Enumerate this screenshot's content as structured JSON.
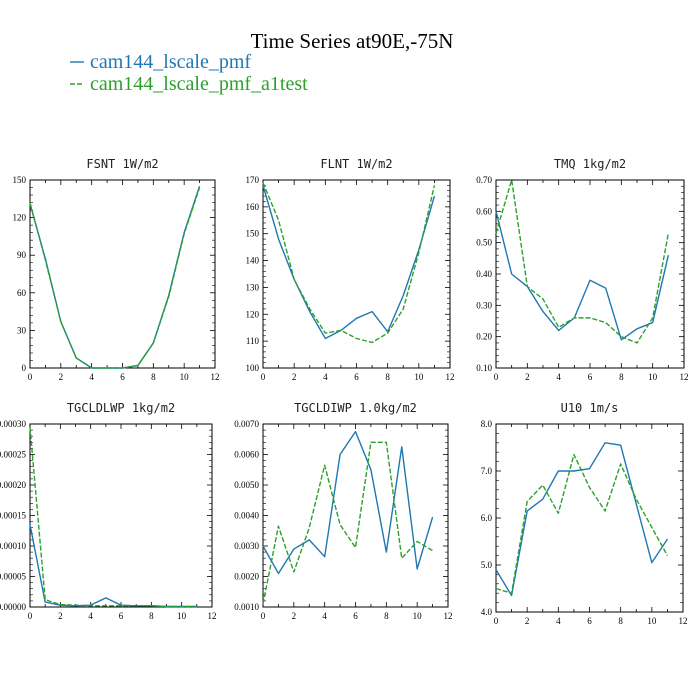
{
  "figure": {
    "title": "Time Series at90E,-75N",
    "legend": [
      {
        "label": "cam144_lscale_pmf",
        "color": "#1f77b4",
        "dash": "solid"
      },
      {
        "label": "cam144_lscale_pmf_a1test",
        "color": "#2ca02c",
        "dash": "dashed"
      }
    ]
  },
  "chart_data": [
    {
      "type": "line",
      "title": "FSNT  1W/m2",
      "x": [
        0,
        1,
        2,
        3,
        4,
        5,
        6,
        7,
        8,
        9,
        10,
        11
      ],
      "xlim": [
        0,
        12
      ],
      "xticks": [
        0,
        2,
        4,
        6,
        8,
        10,
        12
      ],
      "xtick_labels": [
        "0",
        "2",
        "4",
        "6",
        "8",
        "10",
        "12"
      ],
      "ylim": [
        0,
        150
      ],
      "yticks": [
        0,
        30,
        60,
        90,
        120,
        150
      ],
      "ytick_labels": [
        "0",
        "30",
        "60",
        "90",
        "120",
        "150"
      ],
      "series": [
        {
          "name": "cam144_lscale_pmf",
          "values": [
            131,
            87,
            37,
            8,
            0,
            0,
            0,
            2,
            20,
            58,
            108,
            145
          ]
        },
        {
          "name": "cam144_lscale_pmf_a1test",
          "values": [
            132,
            86,
            37,
            8,
            0,
            0,
            0,
            2,
            20,
            57,
            107,
            144
          ]
        }
      ]
    },
    {
      "type": "line",
      "title": "FLNT  1W/m2",
      "x": [
        0,
        1,
        2,
        3,
        4,
        5,
        6,
        7,
        8,
        9,
        10,
        11
      ],
      "xlim": [
        0,
        12
      ],
      "xticks": [
        0,
        2,
        4,
        6,
        8,
        10,
        12
      ],
      "xtick_labels": [
        "0",
        "2",
        "4",
        "6",
        "8",
        "10",
        "12"
      ],
      "ylim": [
        100,
        170
      ],
      "yticks": [
        100,
        110,
        120,
        130,
        140,
        150,
        160,
        170
      ],
      "ytick_labels": [
        "100",
        "110",
        "120",
        "130",
        "140",
        "150",
        "160",
        "170"
      ],
      "series": [
        {
          "name": "cam144_lscale_pmf",
          "values": [
            168,
            148,
            133,
            121,
            111,
            114,
            118.5,
            121,
            113.5,
            127,
            144,
            164
          ]
        },
        {
          "name": "cam144_lscale_pmf_a1test",
          "values": [
            169,
            155,
            133,
            122,
            113,
            114,
            111,
            109.5,
            113,
            122,
            143,
            168
          ]
        }
      ]
    },
    {
      "type": "line",
      "title": "TMQ  1kg/m2",
      "x": [
        0,
        1,
        2,
        3,
        4,
        5,
        6,
        7,
        8,
        9,
        10,
        11
      ],
      "xlim": [
        0,
        12
      ],
      "xticks": [
        0,
        2,
        4,
        6,
        8,
        10,
        12
      ],
      "xtick_labels": [
        "0",
        "2",
        "4",
        "6",
        "8",
        "10",
        "12"
      ],
      "ylim": [
        0.1,
        0.7
      ],
      "yticks": [
        0.1,
        0.2,
        0.3,
        0.4,
        0.5,
        0.6,
        0.7
      ],
      "ytick_labels": [
        "0.10",
        "0.20",
        "0.30",
        "0.40",
        "0.50",
        "0.60",
        "0.70"
      ],
      "series": [
        {
          "name": "cam144_lscale_pmf",
          "values": [
            0.6,
            0.4,
            0.36,
            0.28,
            0.22,
            0.26,
            0.38,
            0.355,
            0.19,
            0.225,
            0.245,
            0.46
          ]
        },
        {
          "name": "cam144_lscale_pmf_a1test",
          "values": [
            0.53,
            0.7,
            0.36,
            0.32,
            0.23,
            0.26,
            0.26,
            0.245,
            0.2,
            0.18,
            0.26,
            0.53
          ]
        }
      ]
    },
    {
      "type": "line",
      "title": "TGCLDLWP  1kg/m2",
      "x": [
        0,
        1,
        2,
        3,
        4,
        5,
        6,
        7,
        8,
        9,
        10,
        11
      ],
      "xlim": [
        0,
        12
      ],
      "xticks": [
        0,
        2,
        4,
        6,
        8,
        10,
        12
      ],
      "xtick_labels": [
        "0",
        "2",
        "4",
        "6",
        "8",
        "10",
        "12"
      ],
      "ylim": [
        0,
        0.0003
      ],
      "yticks": [
        0,
        5e-05,
        0.0001,
        0.00015,
        0.0002,
        0.00025,
        0.0003
      ],
      "ytick_labels": [
        "0.00000",
        "0.00005",
        "0.00010",
        "0.00015",
        "0.00020",
        "0.00025",
        "0.00030"
      ],
      "series": [
        {
          "name": "cam144_lscale_pmf",
          "values": [
            0.000135,
            8e-06,
            3e-06,
            2e-06,
            3e-06,
            1.5e-05,
            3e-06,
            2e-06,
            2e-06,
            1e-06,
            1e-06,
            1e-06
          ]
        },
        {
          "name": "cam144_lscale_pmf_a1test",
          "values": [
            0.000295,
            1.2e-05,
            4e-06,
            3e-06,
            2e-06,
            2e-06,
            2e-06,
            2e-06,
            2e-06,
            1e-06,
            1e-06,
            1e-06
          ]
        }
      ]
    },
    {
      "type": "line",
      "title": "TGCLDIWP  1.0kg/m2",
      "x": [
        0,
        1,
        2,
        3,
        4,
        5,
        6,
        7,
        8,
        9,
        10,
        11
      ],
      "xlim": [
        0,
        12
      ],
      "xticks": [
        0,
        2,
        4,
        6,
        8,
        10,
        12
      ],
      "xtick_labels": [
        "0",
        "2",
        "4",
        "6",
        "8",
        "10",
        "12"
      ],
      "ylim": [
        0.001,
        0.007
      ],
      "yticks": [
        0.001,
        0.002,
        0.003,
        0.004,
        0.005,
        0.006,
        0.007
      ],
      "ytick_labels": [
        "0.0010",
        "0.0020",
        "0.0030",
        "0.0040",
        "0.0050",
        "0.0060",
        "0.0070"
      ],
      "series": [
        {
          "name": "cam144_lscale_pmf",
          "values": [
            0.003,
            0.0021,
            0.0029,
            0.0032,
            0.00265,
            0.006,
            0.00675,
            0.0055,
            0.0028,
            0.00625,
            0.00225,
            0.00395
          ]
        },
        {
          "name": "cam144_lscale_pmf_a1test",
          "values": [
            0.0011,
            0.00365,
            0.00215,
            0.0036,
            0.00565,
            0.0037,
            0.00295,
            0.0064,
            0.0064,
            0.0026,
            0.00315,
            0.00285
          ]
        }
      ]
    },
    {
      "type": "line",
      "title": "U10  1m/s",
      "x": [
        0,
        1,
        2,
        3,
        4,
        5,
        6,
        7,
        8,
        9,
        10,
        11
      ],
      "xlim": [
        0,
        12
      ],
      "xticks": [
        0,
        2,
        4,
        6,
        8,
        10,
        12
      ],
      "xtick_labels": [
        "0",
        "2",
        "4",
        "6",
        "8",
        "10",
        "12"
      ],
      "ylim": [
        4.0,
        8.0
      ],
      "yticks": [
        4.0,
        5.0,
        6.0,
        7.0,
        8.0
      ],
      "ytick_labels": [
        "4.0",
        "5.0",
        "6.0",
        "7.0",
        "8.0"
      ],
      "series": [
        {
          "name": "cam144_lscale_pmf",
          "values": [
            4.9,
            4.35,
            6.15,
            6.4,
            7.0,
            7.0,
            7.05,
            7.6,
            7.55,
            6.3,
            5.05,
            5.55
          ]
        },
        {
          "name": "cam144_lscale_pmf_a1test",
          "values": [
            4.5,
            4.4,
            6.35,
            6.7,
            6.1,
            7.35,
            6.65,
            6.15,
            7.15,
            6.4,
            5.8,
            5.2
          ]
        }
      ]
    }
  ]
}
